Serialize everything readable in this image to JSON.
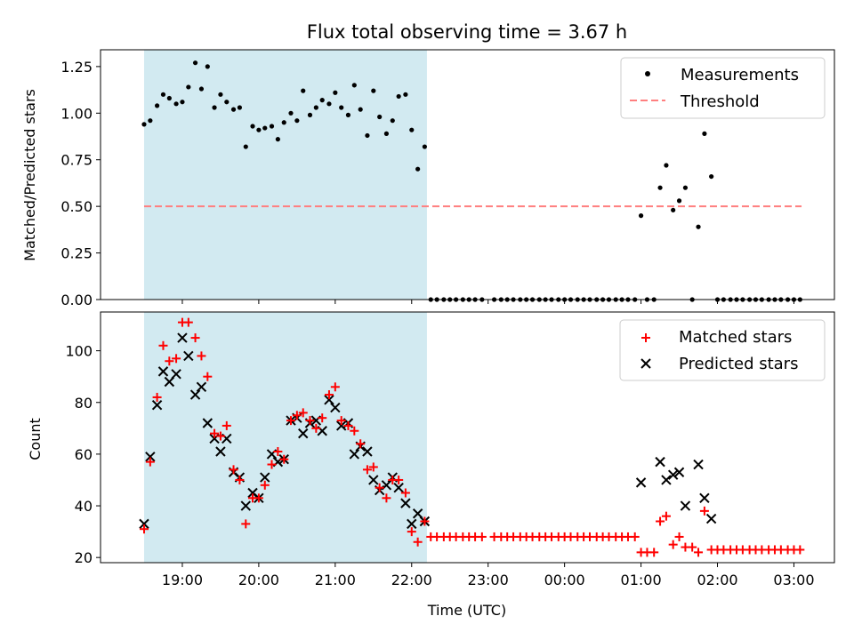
{
  "title": "Flux total observing time = 3.67 h",
  "chart_data": [
    {
      "type": "scatter",
      "ylabel": "Matched/Predicted stars",
      "xlabel": "",
      "ylim": [
        0,
        1.34
      ],
      "yticks": [
        "0.00",
        "0.25",
        "0.50",
        "0.75",
        "1.00",
        "1.25"
      ],
      "yticks_values": [
        0,
        0.25,
        0.5,
        0.75,
        1.0,
        1.25
      ],
      "shaded_region": {
        "from_hour": 18.5,
        "to_hour": 22.2,
        "color": "#add8e6"
      },
      "legend_position": "top-right",
      "threshold": {
        "name": "Threshold",
        "value": 0.5,
        "x_range": [
          18.5,
          27.1
        ],
        "color": "#ff7f7f"
      },
      "series": [
        {
          "name": "Measurements",
          "color": "#000000",
          "x": [
            18.5,
            18.58,
            18.67,
            18.75,
            18.83,
            18.92,
            19.0,
            19.08,
            19.17,
            19.25,
            19.33,
            19.42,
            19.5,
            19.58,
            19.67,
            19.75,
            19.83,
            19.92,
            20.0,
            20.08,
            20.17,
            20.25,
            20.33,
            20.42,
            20.5,
            20.58,
            20.67,
            20.75,
            20.83,
            20.92,
            21.0,
            21.08,
            21.17,
            21.25,
            21.33,
            21.42,
            21.5,
            21.58,
            21.67,
            21.75,
            21.83,
            21.92,
            22.0,
            22.08,
            22.17,
            22.25,
            22.33,
            22.42,
            22.5,
            22.58,
            22.67,
            22.75,
            22.83,
            22.92,
            23.08,
            23.17,
            23.25,
            23.33,
            23.42,
            23.5,
            23.58,
            23.67,
            23.75,
            23.83,
            23.92,
            24.0,
            24.08,
            24.17,
            24.25,
            24.33,
            24.42,
            24.5,
            24.58,
            24.67,
            24.75,
            24.83,
            24.92,
            25.0,
            25.08,
            25.17,
            25.25,
            25.33,
            25.42,
            25.5,
            25.58,
            25.67,
            25.75,
            25.83,
            25.92,
            26.0,
            26.08,
            26.17,
            26.25,
            26.33,
            26.42,
            26.5,
            26.58,
            26.67,
            26.75,
            26.83,
            26.92,
            27.0,
            27.08
          ],
          "y": [
            0.94,
            0.96,
            1.04,
            1.1,
            1.08,
            1.05,
            1.06,
            1.14,
            1.27,
            1.13,
            1.25,
            1.03,
            1.1,
            1.06,
            1.02,
            1.03,
            0.82,
            0.93,
            0.91,
            0.92,
            0.93,
            0.86,
            0.95,
            1.0,
            0.96,
            1.12,
            0.99,
            1.03,
            1.07,
            1.05,
            1.11,
            1.03,
            0.99,
            1.15,
            1.02,
            0.88,
            1.12,
            0.98,
            0.89,
            0.96,
            1.09,
            1.1,
            0.91,
            0.7,
            0.82,
            0,
            0,
            0,
            0,
            0,
            0,
            0,
            0,
            0,
            0,
            0,
            0,
            0,
            0,
            0,
            0,
            0,
            0,
            0,
            0,
            0,
            0,
            0,
            0,
            0,
            0,
            0,
            0,
            0,
            0,
            0,
            0,
            0.45,
            0,
            0,
            0.6,
            0.72,
            0.48,
            0.53,
            0.6,
            0,
            0.39,
            0.89,
            0.66,
            0,
            0,
            0,
            0,
            0,
            0,
            0,
            0,
            0,
            0,
            0,
            0,
            0,
            0
          ]
        }
      ]
    },
    {
      "type": "scatter",
      "ylabel": "Count",
      "xlabel": "Time (UTC)",
      "ylim": [
        18,
        115
      ],
      "yticks": [
        "20",
        "40",
        "60",
        "80",
        "100"
      ],
      "yticks_values": [
        20,
        40,
        60,
        80,
        100
      ],
      "xlim": [
        17.93,
        27.53
      ],
      "xticks": [
        "19:00",
        "20:00",
        "21:00",
        "22:00",
        "23:00",
        "00:00",
        "01:00",
        "02:00",
        "03:00"
      ],
      "xticks_values": [
        19,
        20,
        21,
        22,
        23,
        24,
        25,
        26,
        27
      ],
      "shaded_region": {
        "from_hour": 18.5,
        "to_hour": 22.2,
        "color": "#add8e6"
      },
      "legend_position": "top-right",
      "series": [
        {
          "name": "Matched stars",
          "marker": "+",
          "color": "#ff0000",
          "x": [
            18.5,
            18.58,
            18.67,
            18.75,
            18.83,
            18.92,
            19.0,
            19.08,
            19.17,
            19.25,
            19.33,
            19.42,
            19.5,
            19.58,
            19.67,
            19.75,
            19.83,
            19.92,
            20.0,
            20.08,
            20.17,
            20.25,
            20.33,
            20.42,
            20.5,
            20.58,
            20.67,
            20.75,
            20.83,
            20.92,
            21.0,
            21.08,
            21.17,
            21.25,
            21.33,
            21.42,
            21.5,
            21.58,
            21.67,
            21.75,
            21.83,
            21.92,
            22.0,
            22.08,
            22.17,
            22.25,
            22.33,
            22.42,
            22.5,
            22.58,
            22.67,
            22.75,
            22.83,
            22.92,
            23.08,
            23.17,
            23.25,
            23.33,
            23.42,
            23.5,
            23.58,
            23.67,
            23.75,
            23.83,
            23.92,
            24.0,
            24.08,
            24.17,
            24.25,
            24.33,
            24.42,
            24.5,
            24.58,
            24.67,
            24.75,
            24.83,
            24.92,
            25.0,
            25.08,
            25.17,
            25.25,
            25.33,
            25.42,
            25.5,
            25.58,
            25.67,
            25.75,
            25.83,
            25.92,
            26.0,
            26.08,
            26.17,
            26.25,
            26.33,
            26.42,
            26.5,
            26.58,
            26.67,
            26.75,
            26.83,
            26.92,
            27.0,
            27.08
          ],
          "y": [
            31,
            57,
            82,
            102,
            96,
            97,
            111,
            111,
            105,
            98,
            90,
            68,
            67,
            71,
            54,
            50,
            33,
            43,
            43,
            48,
            56,
            61,
            58,
            73,
            75,
            76,
            73,
            70,
            74,
            83,
            86,
            73,
            71,
            69,
            64,
            54,
            55,
            47,
            43,
            50,
            50,
            45,
            30,
            26,
            34,
            28,
            28,
            28,
            28,
            28,
            28,
            28,
            28,
            28,
            28,
            28,
            28,
            28,
            28,
            28,
            28,
            28,
            28,
            28,
            28,
            28,
            28,
            28,
            28,
            28,
            28,
            28,
            28,
            28,
            28,
            28,
            28,
            22,
            22,
            22,
            34,
            36,
            25,
            28,
            24,
            24,
            22,
            38,
            23,
            23,
            23,
            23,
            23,
            23,
            23,
            23,
            23,
            23,
            23,
            23,
            23,
            23,
            23
          ]
        },
        {
          "name": "Predicted stars",
          "marker": "x",
          "color": "#000000",
          "x": [
            18.5,
            18.58,
            18.67,
            18.75,
            18.83,
            18.92,
            19.0,
            19.08,
            19.17,
            19.25,
            19.33,
            19.42,
            19.5,
            19.58,
            19.67,
            19.75,
            19.83,
            19.92,
            20.0,
            20.08,
            20.17,
            20.25,
            20.33,
            20.42,
            20.5,
            20.58,
            20.67,
            20.75,
            20.83,
            20.92,
            21.0,
            21.08,
            21.17,
            21.25,
            21.33,
            21.42,
            21.5,
            21.58,
            21.67,
            21.75,
            21.83,
            21.92,
            22.0,
            22.08,
            22.17,
            25.0,
            25.25,
            25.33,
            25.42,
            25.5,
            25.58,
            25.75,
            25.83,
            25.92
          ],
          "y": [
            33,
            59,
            79,
            92,
            88,
            91,
            105,
            98,
            83,
            86,
            72,
            66,
            61,
            66,
            53,
            51,
            40,
            45,
            43,
            51,
            60,
            57,
            58,
            73,
            74,
            68,
            72,
            73,
            69,
            81,
            78,
            71,
            72,
            60,
            63,
            61,
            50,
            46,
            48,
            51,
            47,
            41,
            33,
            37,
            34,
            49,
            57,
            50,
            52,
            53,
            40,
            56,
            43,
            35
          ]
        }
      ]
    }
  ]
}
